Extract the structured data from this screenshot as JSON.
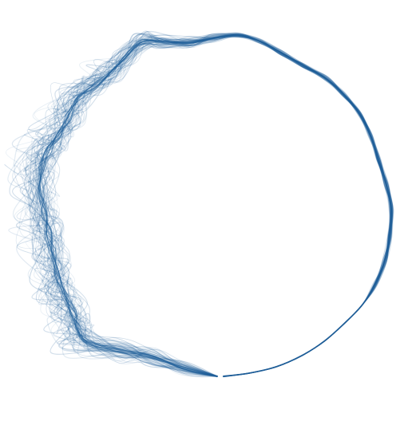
{
  "figure": {
    "kind": "ring-of-overlaid-noisy-traces",
    "stroke_color": "#1f5f99",
    "background_color": "#ffffff",
    "trace_count": 70,
    "description_shown_text": ""
  }
}
